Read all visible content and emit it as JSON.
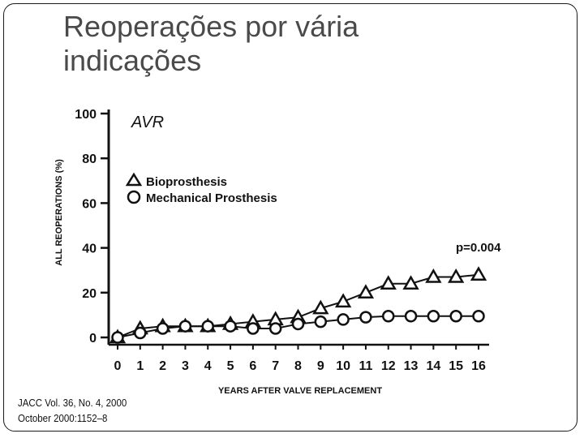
{
  "slide": {
    "title_line1": "Reoperações por vária",
    "title_line2": "indicações"
  },
  "citation": {
    "line1": "JACC Vol. 36, No. 4, 2000",
    "line2": "October 2000:1152–8"
  },
  "chart_data": {
    "type": "line",
    "panel_label": "AVR",
    "xlabel": "YEARS AFTER VALVE REPLACEMENT",
    "ylabel": "ALL REOPERATIONS (%)",
    "x": [
      0,
      1,
      2,
      3,
      4,
      5,
      6,
      7,
      8,
      9,
      10,
      11,
      12,
      13,
      14,
      15,
      16
    ],
    "xlim": [
      0,
      16
    ],
    "ylim": [
      0,
      100
    ],
    "yticks": [
      0,
      20,
      40,
      60,
      80,
      100
    ],
    "annotation": "p=0.004",
    "series": [
      {
        "name": "Bioprosthesis",
        "marker": "triangle",
        "values": [
          0,
          4,
          5,
          5,
          5,
          6,
          7,
          8,
          9,
          13,
          16,
          20,
          24,
          24,
          27,
          27,
          28
        ]
      },
      {
        "name": "Mechanical Prosthesis",
        "marker": "circle",
        "values": [
          0,
          2,
          4,
          5,
          5,
          5,
          4,
          4,
          6,
          7,
          8,
          9,
          9.5,
          9.5,
          9.5,
          9.5,
          9.5
        ]
      }
    ]
  }
}
